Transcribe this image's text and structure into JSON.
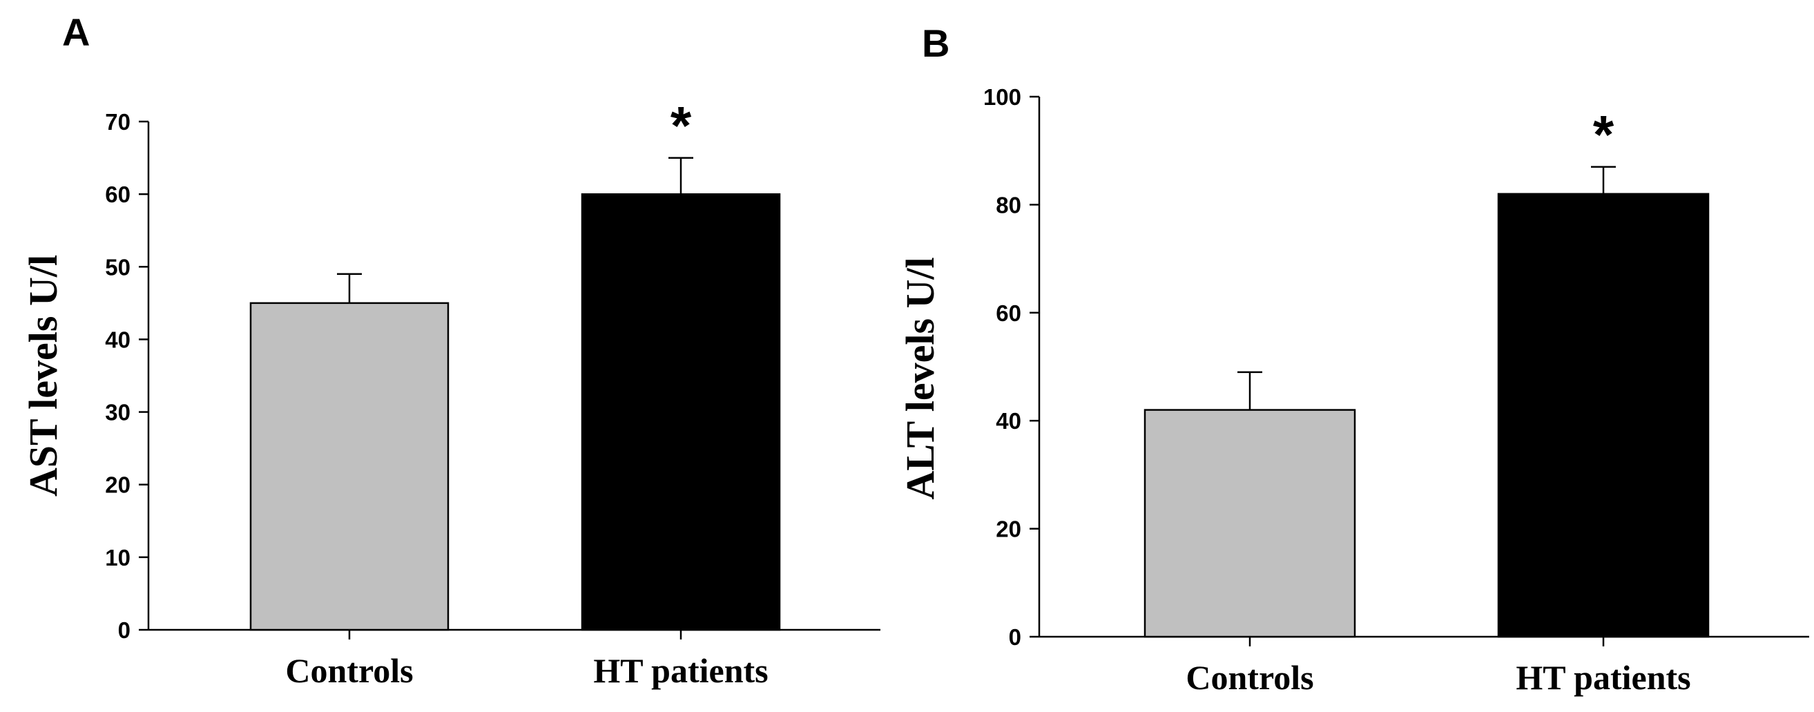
{
  "chart_data": [
    {
      "panel_label": "A",
      "type": "bar",
      "categories": [
        "Controls",
        "HT patients"
      ],
      "values": [
        45,
        60
      ],
      "errors": [
        4,
        5
      ],
      "bar_colors": [
        "#c0c0c0",
        "#000000"
      ],
      "significance": [
        "",
        "*"
      ],
      "ylabel": "AST levels U/l",
      "ylim": [
        0,
        70
      ],
      "yticks": [
        0,
        10,
        20,
        30,
        40,
        50,
        60,
        70
      ],
      "grid": false
    },
    {
      "panel_label": "B",
      "type": "bar",
      "categories": [
        "Controls",
        "HT patients"
      ],
      "values": [
        42,
        82
      ],
      "errors": [
        7,
        5
      ],
      "bar_colors": [
        "#c0c0c0",
        "#000000"
      ],
      "significance": [
        "",
        "*"
      ],
      "ylabel": "ALT levels U/l",
      "ylim": [
        0,
        100
      ],
      "yticks": [
        0,
        20,
        40,
        60,
        80,
        100
      ],
      "grid": false
    }
  ]
}
